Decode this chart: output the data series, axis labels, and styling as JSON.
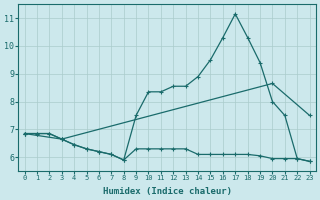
{
  "xlabel": "Humidex (Indice chaleur)",
  "bg_color": "#cce8ec",
  "grid_color": "#aacccc",
  "line_color": "#1a6b6b",
  "xlim": [
    -0.5,
    23.5
  ],
  "ylim": [
    5.5,
    11.5
  ],
  "xticks": [
    0,
    1,
    2,
    3,
    4,
    5,
    6,
    7,
    8,
    9,
    10,
    11,
    12,
    13,
    14,
    15,
    16,
    17,
    18,
    19,
    20,
    21,
    22,
    23
  ],
  "yticks": [
    6,
    7,
    8,
    9,
    10,
    11
  ],
  "line1_x": [
    0,
    1,
    2,
    3,
    4,
    5,
    6,
    7,
    8,
    9,
    10,
    11,
    12,
    13,
    14,
    15,
    16,
    17,
    18,
    19,
    20,
    21,
    22,
    23
  ],
  "line1_y": [
    6.85,
    6.85,
    6.85,
    6.65,
    6.45,
    6.3,
    6.2,
    6.1,
    5.9,
    6.3,
    6.3,
    6.3,
    6.3,
    6.3,
    6.1,
    6.1,
    6.1,
    6.1,
    6.1,
    6.05,
    5.95,
    5.95,
    5.95,
    5.85
  ],
  "line2_x": [
    0,
    1,
    2,
    3,
    4,
    5,
    6,
    7,
    8,
    9,
    10,
    11,
    12,
    13,
    14,
    15,
    16,
    17,
    18,
    19,
    20,
    21,
    22,
    23
  ],
  "line2_y": [
    6.85,
    6.85,
    6.85,
    6.65,
    6.45,
    6.3,
    6.2,
    6.1,
    5.9,
    7.5,
    8.35,
    8.35,
    8.55,
    8.55,
    8.9,
    9.5,
    10.3,
    11.15,
    10.3,
    9.4,
    8.0,
    7.5,
    5.95,
    5.85
  ],
  "line3_x": [
    0,
    3,
    20,
    23
  ],
  "line3_y": [
    6.85,
    6.65,
    8.65,
    7.5
  ]
}
